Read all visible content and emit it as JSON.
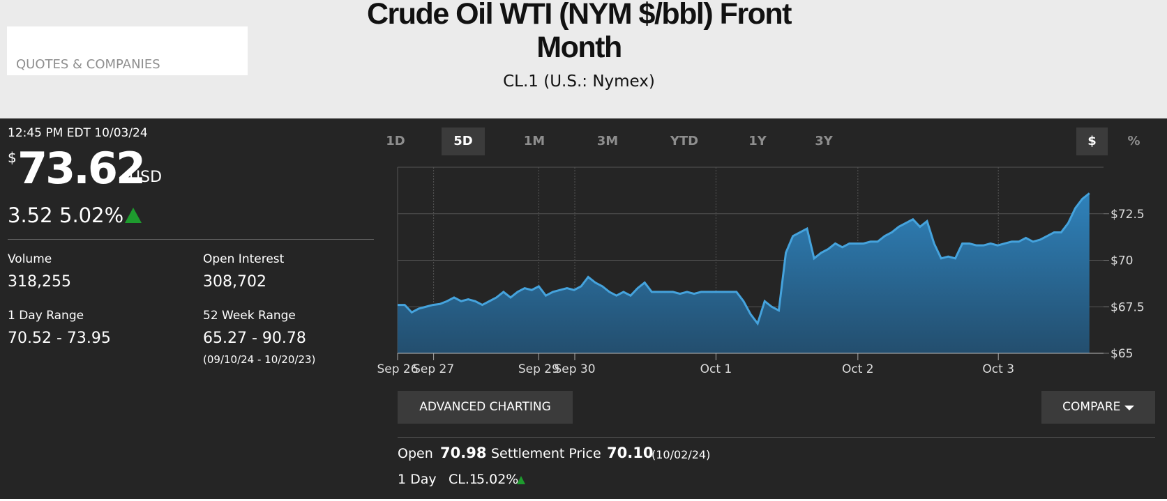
{
  "header": {
    "section": "QUOTES & COMPANIES",
    "title": "Crude Oil WTI (NYM $/bbl) Front Month",
    "subtitle": "CL.1 (U.S.: Nymex)"
  },
  "quote": {
    "timestamp": "12:45 PM EDT 10/03/24",
    "currency_symbol": "$",
    "price": "73.62",
    "currency": "USD",
    "change": "3.52",
    "change_pct": "5.02%"
  },
  "stats": [
    {
      "label": "Volume",
      "value": "318,255"
    },
    {
      "label": "Open Interest",
      "value": "308,702"
    },
    {
      "label": "1 Day Range",
      "value": "70.52 - 73.95"
    },
    {
      "label": "52 Week Range",
      "value": "65.27 - 90.78",
      "note": "(09/10/24 - 10/20/23)"
    }
  ],
  "range_tabs": [
    "1D",
    "5D",
    "1M",
    "3M",
    "YTD",
    "1Y",
    "3Y"
  ],
  "active_range": "5D",
  "unit_tabs": [
    "$",
    "%"
  ],
  "active_unit": "$",
  "buttons": {
    "advanced": "ADVANCED CHARTING",
    "compare": "COMPARE"
  },
  "footer": {
    "open_label": "Open",
    "open": "70.98",
    "settlement_label": "Settlement Price",
    "settlement": "70.10",
    "settlement_date": "(10/02/24)",
    "day_label": "1 Day",
    "day_symbol": "CL.1",
    "day_change": "5.02%"
  },
  "chart_data": {
    "type": "area",
    "color": "#2a6e9e",
    "line_color": "#45a3dd",
    "grid": true,
    "x": [
      0,
      1,
      2,
      3,
      4,
      5,
      6,
      7,
      8,
      9,
      10,
      11,
      12,
      13,
      14,
      15,
      16,
      17,
      18,
      19,
      20,
      21,
      22,
      23,
      24,
      25,
      26,
      27,
      28,
      29,
      30,
      31,
      32,
      33,
      34,
      35,
      36,
      37,
      38,
      39,
      40,
      41,
      42,
      43,
      44,
      45,
      46,
      47,
      48,
      49,
      50,
      51,
      52,
      53,
      54,
      55,
      56,
      57,
      58,
      59,
      60,
      61,
      62,
      63,
      64,
      65,
      66,
      67,
      68,
      69,
      70,
      71,
      72,
      73,
      74,
      75,
      76,
      77,
      78,
      79,
      80,
      81,
      82,
      83,
      84,
      85,
      86,
      87,
      88,
      89,
      90,
      91,
      92,
      93,
      94,
      95,
      96,
      97,
      98
    ],
    "values": [
      67.6,
      67.6,
      67.2,
      67.4,
      67.5,
      67.6,
      67.65,
      67.8,
      68.0,
      67.8,
      67.9,
      67.8,
      67.6,
      67.8,
      68.0,
      68.3,
      68.0,
      68.3,
      68.5,
      68.4,
      68.6,
      68.1,
      68.3,
      68.4,
      68.5,
      68.4,
      68.6,
      69.1,
      68.8,
      68.6,
      68.3,
      68.1,
      68.3,
      68.1,
      68.5,
      68.8,
      68.3,
      68.3,
      68.3,
      68.3,
      68.2,
      68.3,
      68.2,
      68.3,
      68.3,
      68.3,
      68.3,
      68.3,
      68.3,
      67.8,
      67.1,
      66.6,
      67.8,
      67.5,
      67.3,
      70.4,
      71.3,
      71.5,
      71.7,
      70.1,
      70.4,
      70.6,
      70.9,
      70.7,
      70.9,
      70.9,
      70.9,
      71.0,
      71.0,
      71.3,
      71.5,
      71.8,
      72.0,
      72.2,
      71.8,
      72.1,
      70.9,
      70.1,
      70.2,
      70.1,
      70.9,
      70.9,
      70.8,
      70.8,
      70.9,
      70.8,
      70.9,
      71.0,
      71.0,
      71.2,
      71.0,
      71.1,
      71.3,
      71.5,
      71.5,
      72.0,
      72.8,
      73.3,
      73.6
    ],
    "xlim": [
      0,
      100
    ],
    "ylim": [
      65,
      75
    ],
    "xticks": [
      {
        "value": 0,
        "label": "Sep 26"
      },
      {
        "value": 5.1,
        "label": "Sep 27"
      },
      {
        "value": 20,
        "label": "Sep 29"
      },
      {
        "value": 25.1,
        "label": "Sep 30"
      },
      {
        "value": 45.1,
        "label": "Oct 1"
      },
      {
        "value": 65.2,
        "label": "Oct 2"
      },
      {
        "value": 85.1,
        "label": "Oct 3"
      }
    ],
    "yticks": [
      {
        "value": 65,
        "label": "$65"
      },
      {
        "value": 67.5,
        "label": "$67.5"
      },
      {
        "value": 70,
        "label": "$70"
      },
      {
        "value": 72.5,
        "label": "$72.5"
      }
    ]
  }
}
